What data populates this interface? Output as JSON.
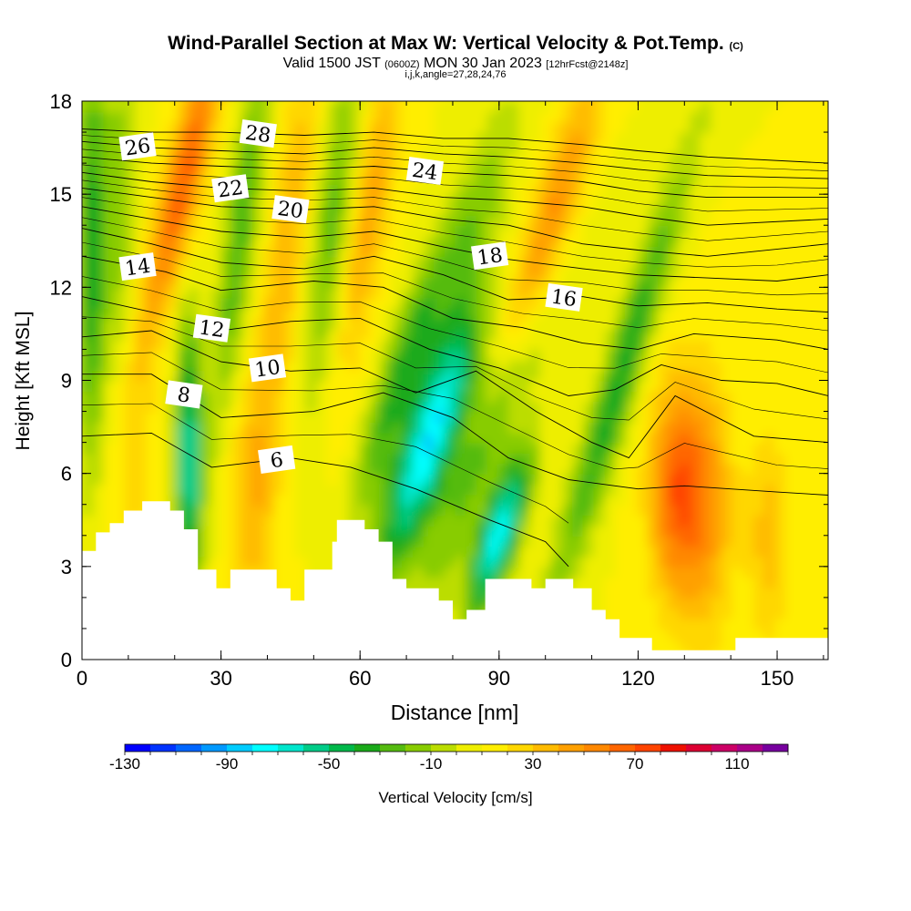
{
  "header": {
    "title": "Wind-Parallel Section at Max W: Vertical Velocity & Pot.Temp.",
    "copyright": "(C)",
    "valid_prefix": "Valid 1500 JST",
    "valid_utc": "(0600Z)",
    "valid_date": "MON 30 Jan 2023",
    "forecast": "[12hrFcst@2148z]",
    "indices": "i,j,k,angle=27,28,24,76"
  },
  "chart_data": {
    "type": "heatmap",
    "xlabel": "Distance [nm]",
    "ylabel": "Height [Kft MSL]",
    "xlim": [
      0,
      161
    ],
    "ylim": [
      0,
      18
    ],
    "x_ticks": [
      0,
      30,
      60,
      90,
      120,
      150
    ],
    "y_ticks": [
      0,
      3,
      6,
      9,
      12,
      15,
      18
    ],
    "colorbar": {
      "label": "Vertical Velocity [cm/s]",
      "min": -130,
      "max": 110,
      "step": 10,
      "tick_labels": [
        -130,
        -90,
        -50,
        -10,
        30,
        70,
        110
      ],
      "colors": [
        "#0000ff",
        "#0033ff",
        "#0066ff",
        "#0099ff",
        "#00ccff",
        "#00ffff",
        "#00e6cc",
        "#00cc88",
        "#00b84a",
        "#1aaa1a",
        "#55bb10",
        "#88cc00",
        "#bbdd00",
        "#eeee00",
        "#ffee00",
        "#ffd700",
        "#ffbb00",
        "#ffa000",
        "#ff8800",
        "#ff6600",
        "#ff4400",
        "#ee1100",
        "#dd0033",
        "#cc0066",
        "#aa0088",
        "#77009f"
      ]
    },
    "terrain_kft": [
      [
        0,
        3.5
      ],
      [
        3,
        3.5
      ],
      [
        3,
        4.1
      ],
      [
        6,
        4.1
      ],
      [
        6,
        4.4
      ],
      [
        9,
        4.4
      ],
      [
        9,
        4.8
      ],
      [
        13,
        4.8
      ],
      [
        13,
        5.1
      ],
      [
        19,
        5.1
      ],
      [
        19,
        4.8
      ],
      [
        22,
        4.8
      ],
      [
        22,
        4.2
      ],
      [
        25,
        4.2
      ],
      [
        25,
        2.9
      ],
      [
        29,
        2.9
      ],
      [
        29,
        2.3
      ],
      [
        32,
        2.3
      ],
      [
        32,
        2.9
      ],
      [
        42,
        2.9
      ],
      [
        42,
        2.3
      ],
      [
        45,
        2.3
      ],
      [
        45,
        1.9
      ],
      [
        48,
        1.9
      ],
      [
        48,
        2.9
      ],
      [
        51,
        2.9
      ],
      [
        51,
        2.9
      ],
      [
        54,
        2.9
      ],
      [
        54,
        3.8
      ],
      [
        55,
        3.8
      ],
      [
        55,
        4.5
      ],
      [
        61,
        4.5
      ],
      [
        61,
        4.2
      ],
      [
        64,
        4.2
      ],
      [
        64,
        3.8
      ],
      [
        67,
        3.8
      ],
      [
        67,
        2.6
      ],
      [
        70,
        2.6
      ],
      [
        70,
        2.3
      ],
      [
        77,
        2.3
      ],
      [
        77,
        1.9
      ],
      [
        80,
        1.9
      ],
      [
        80,
        1.3
      ],
      [
        83,
        1.3
      ],
      [
        83,
        1.6
      ],
      [
        87,
        1.6
      ],
      [
        87,
        2.6
      ],
      [
        97,
        2.6
      ],
      [
        97,
        2.3
      ],
      [
        100,
        2.3
      ],
      [
        100,
        2.6
      ],
      [
        106,
        2.6
      ],
      [
        106,
        2.3
      ],
      [
        110,
        2.3
      ],
      [
        110,
        1.6
      ],
      [
        113,
        1.6
      ],
      [
        113,
        1.3
      ],
      [
        116,
        1.3
      ],
      [
        116,
        0.7
      ],
      [
        123,
        0.7
      ],
      [
        123,
        0.3
      ],
      [
        141,
        0.3
      ],
      [
        141,
        0.7
      ],
      [
        161,
        0.7
      ]
    ],
    "velocity_features": [
      {
        "x": 2,
        "y": 13,
        "sx": 2.2,
        "sy": 5,
        "w": -50,
        "tilt": 0
      },
      {
        "x": 8,
        "y": 14,
        "sx": 2.5,
        "sy": 5,
        "w": -25,
        "tilt": 0
      },
      {
        "x": 22,
        "y": 15.5,
        "sx": 3,
        "sy": 3.5,
        "w": 60,
        "tilt": 1.5
      },
      {
        "x": 23,
        "y": 6.5,
        "sx": 2,
        "sy": 3,
        "w": -75,
        "tilt": 0
      },
      {
        "x": 34,
        "y": 13.5,
        "sx": 2.5,
        "sy": 4.5,
        "w": -40,
        "tilt": 0.8
      },
      {
        "x": 44,
        "y": 13,
        "sx": 3,
        "sy": 5,
        "w": 30,
        "tilt": 0.8
      },
      {
        "x": 54,
        "y": 14,
        "sx": 3,
        "sy": 4,
        "w": -35,
        "tilt": 0.8
      },
      {
        "x": 62,
        "y": 14.5,
        "sx": 3,
        "sy": 3.5,
        "w": 35,
        "tilt": 1
      },
      {
        "x": 75,
        "y": 7,
        "sx": 4,
        "sy": 2.8,
        "w": -90,
        "tilt": 2.2
      },
      {
        "x": 68,
        "y": 9,
        "sx": 3,
        "sy": 3,
        "w": -40,
        "tilt": 2
      },
      {
        "x": 90,
        "y": 4,
        "sx": 3,
        "sy": 1.8,
        "w": -85,
        "tilt": 2
      },
      {
        "x": 87,
        "y": 7,
        "sx": 4,
        "sy": 4,
        "w": -35,
        "tilt": 2.5
      },
      {
        "x": 82,
        "y": 13,
        "sx": 4,
        "sy": 3.5,
        "w": -30,
        "tilt": 2
      },
      {
        "x": 101,
        "y": 14,
        "sx": 3.5,
        "sy": 3.5,
        "w": 45,
        "tilt": 2
      },
      {
        "x": 116,
        "y": 9,
        "sx": 3,
        "sy": 5,
        "w": -50,
        "tilt": 2
      },
      {
        "x": 128,
        "y": 5.5,
        "sx": 4,
        "sy": 2.5,
        "w": 55,
        "tilt": 0
      },
      {
        "x": 135,
        "y": 5,
        "sx": 4,
        "sy": 3,
        "w": 35,
        "tilt": 0
      },
      {
        "x": 148,
        "y": 4,
        "sx": 3,
        "sy": 2.5,
        "w": 25,
        "tilt": 0
      },
      {
        "x": 37,
        "y": 5,
        "sx": 4,
        "sy": 3,
        "w": 22,
        "tilt": 0
      },
      {
        "x": 10,
        "y": 7,
        "sx": 4,
        "sy": 3,
        "w": 18,
        "tilt": 0
      }
    ],
    "theta_contours": [
      {
        "points": [
          [
            0,
            7.2
          ],
          [
            15,
            7.3
          ],
          [
            28,
            6.2
          ],
          [
            45,
            6.5
          ],
          [
            58,
            6.2
          ],
          [
            72,
            5.5
          ],
          [
            88,
            4.5
          ],
          [
            100,
            3.8
          ],
          [
            105,
            3.0
          ]
        ],
        "label": "6",
        "label_x": 42
      },
      {
        "points": [
          [
            0,
            9.2
          ],
          [
            15,
            9.2
          ],
          [
            30,
            7.8
          ],
          [
            50,
            8.0
          ],
          [
            65,
            8.6
          ],
          [
            80,
            7.8
          ],
          [
            92,
            6.5
          ],
          [
            105,
            5.8
          ],
          [
            115,
            5.6
          ],
          [
            120,
            5.5
          ],
          [
            130,
            5.6
          ],
          [
            150,
            5.4
          ],
          [
            161,
            5.3
          ]
        ],
        "label": "8",
        "label_x": 22
      },
      {
        "points": [
          [
            0,
            10.4
          ],
          [
            15,
            10.6
          ],
          [
            30,
            9.6
          ],
          [
            45,
            9.3
          ],
          [
            60,
            9.4
          ],
          [
            72,
            8.6
          ],
          [
            85,
            9.3
          ],
          [
            98,
            8.0
          ],
          [
            110,
            7.0
          ],
          [
            118,
            6.5
          ],
          [
            128,
            8.5
          ],
          [
            145,
            7.2
          ],
          [
            161,
            7.0
          ]
        ],
        "label": "10",
        "label_x": 40
      },
      {
        "points": [
          [
            0,
            11.7
          ],
          [
            15,
            11.2
          ],
          [
            30,
            10.6
          ],
          [
            45,
            10.9
          ],
          [
            60,
            11.0
          ],
          [
            75,
            10.0
          ],
          [
            90,
            9.4
          ],
          [
            105,
            8.5
          ],
          [
            115,
            8.7
          ],
          [
            125,
            9.5
          ],
          [
            138,
            9.0
          ],
          [
            150,
            8.9
          ],
          [
            161,
            8.5
          ]
        ],
        "label": "12",
        "label_x": 28
      },
      {
        "points": [
          [
            0,
            13.0
          ],
          [
            18,
            12.5
          ],
          [
            30,
            11.9
          ],
          [
            50,
            12.2
          ],
          [
            65,
            12.0
          ],
          [
            80,
            11.0
          ],
          [
            95,
            10.7
          ],
          [
            108,
            10.2
          ],
          [
            120,
            10.0
          ],
          [
            132,
            10.5
          ],
          [
            150,
            10.3
          ],
          [
            161,
            10.0
          ]
        ],
        "label": "14",
        "label_x": 12
      },
      {
        "points": [
          [
            0,
            13.9
          ],
          [
            15,
            13.4
          ],
          [
            30,
            12.8
          ],
          [
            48,
            12.6
          ],
          [
            63,
            13.0
          ],
          [
            78,
            12.4
          ],
          [
            92,
            11.6
          ],
          [
            108,
            11.7
          ],
          [
            120,
            11.4
          ],
          [
            135,
            11.5
          ],
          [
            150,
            11.3
          ],
          [
            161,
            11.2
          ]
        ],
        "label": "16",
        "label_x": 104
      },
      {
        "points": [
          [
            0,
            14.6
          ],
          [
            15,
            14.2
          ],
          [
            30,
            13.8
          ],
          [
            48,
            13.6
          ],
          [
            63,
            13.8
          ],
          [
            78,
            13.3
          ],
          [
            92,
            12.9
          ],
          [
            108,
            12.6
          ],
          [
            120,
            12.4
          ],
          [
            135,
            12.3
          ],
          [
            150,
            12.2
          ],
          [
            161,
            12.4
          ]
        ],
        "label": "18",
        "label_x": 88
      },
      {
        "points": [
          [
            0,
            15.2
          ],
          [
            15,
            14.9
          ],
          [
            30,
            14.6
          ],
          [
            48,
            14.5
          ],
          [
            63,
            14.6
          ],
          [
            78,
            14.2
          ],
          [
            92,
            14.0
          ],
          [
            108,
            13.4
          ],
          [
            120,
            13.2
          ],
          [
            135,
            13.0
          ],
          [
            161,
            13.4
          ]
        ],
        "label": "20",
        "label_x": 45
      },
      {
        "points": [
          [
            0,
            15.7
          ],
          [
            15,
            15.4
          ],
          [
            30,
            15.2
          ],
          [
            48,
            15.1
          ],
          [
            63,
            15.2
          ],
          [
            78,
            14.9
          ],
          [
            92,
            14.8
          ],
          [
            108,
            14.6
          ],
          [
            120,
            14.3
          ],
          [
            135,
            14.0
          ],
          [
            161,
            14.2
          ]
        ],
        "label": "22",
        "label_x": 32
      },
      {
        "points": [
          [
            0,
            16.2
          ],
          [
            15,
            16.0
          ],
          [
            30,
            15.9
          ],
          [
            48,
            15.8
          ],
          [
            63,
            15.9
          ],
          [
            78,
            15.7
          ],
          [
            92,
            15.6
          ],
          [
            108,
            15.4
          ],
          [
            120,
            15.1
          ],
          [
            135,
            14.9
          ],
          [
            161,
            14.9
          ]
        ],
        "label": "24",
        "label_x": 74
      },
      {
        "points": [
          [
            0,
            16.7
          ],
          [
            15,
            16.5
          ],
          [
            30,
            16.4
          ],
          [
            48,
            16.3
          ],
          [
            63,
            16.5
          ],
          [
            78,
            16.3
          ],
          [
            92,
            16.2
          ],
          [
            108,
            16.0
          ],
          [
            120,
            15.8
          ],
          [
            135,
            15.6
          ],
          [
            161,
            15.5
          ]
        ],
        "label": "26",
        "label_x": 12
      },
      {
        "points": [
          [
            0,
            17.1
          ],
          [
            15,
            17.0
          ],
          [
            30,
            17.0
          ],
          [
            48,
            16.9
          ],
          [
            63,
            17.0
          ],
          [
            78,
            16.8
          ],
          [
            92,
            16.8
          ],
          [
            108,
            16.6
          ],
          [
            120,
            16.4
          ],
          [
            135,
            16.2
          ],
          [
            161,
            16.0
          ]
        ],
        "label": "28",
        "label_x": 38
      }
    ]
  }
}
